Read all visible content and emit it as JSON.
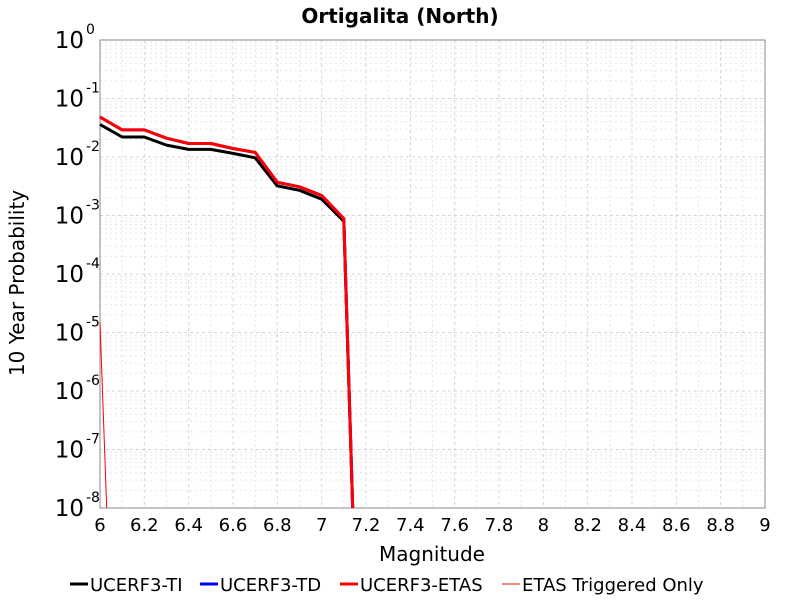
{
  "chart_data": {
    "type": "line",
    "title": "Ortigalita (North)",
    "xlabel": "Magnitude",
    "ylabel": "10 Year Probability",
    "xlim": [
      6,
      9
    ],
    "ylim": [
      1e-08,
      1
    ],
    "yscale": "log",
    "grid": true,
    "legend_position": "bottom",
    "x_ticks": [
      "6",
      "6.2",
      "6.4",
      "6.6",
      "6.8",
      "7",
      "7.2",
      "7.4",
      "7.6",
      "7.8",
      "8",
      "8.2",
      "8.4",
      "8.6",
      "8.8",
      "9"
    ],
    "y_ticks": [
      {
        "base": "10",
        "exp": "0"
      },
      {
        "base": "10",
        "exp": "-1"
      },
      {
        "base": "10",
        "exp": "-2"
      },
      {
        "base": "10",
        "exp": "-3"
      },
      {
        "base": "10",
        "exp": "-4"
      },
      {
        "base": "10",
        "exp": "-5"
      },
      {
        "base": "10",
        "exp": "-6"
      },
      {
        "base": "10",
        "exp": "-7"
      },
      {
        "base": "10",
        "exp": "-8"
      }
    ],
    "series": [
      {
        "name": "UCERF3-TI",
        "color": "#000000",
        "width": 3,
        "x": [
          6.0,
          6.1,
          6.2,
          6.3,
          6.4,
          6.5,
          6.6,
          6.7,
          6.8,
          6.9,
          7.0,
          7.1,
          7.14
        ],
        "y": [
          0.036,
          0.022,
          0.022,
          0.016,
          0.0135,
          0.0135,
          0.0115,
          0.0097,
          0.0032,
          0.0027,
          0.0019,
          0.0008,
          1e-08
        ]
      },
      {
        "name": "UCERF3-TD",
        "color": "#0000ff",
        "width": 3,
        "x": [
          6.0,
          6.1,
          6.2,
          6.3,
          6.4,
          6.5,
          6.6,
          6.7,
          6.8,
          6.9,
          7.0,
          7.1,
          7.14
        ],
        "y": [
          0.048,
          0.029,
          0.029,
          0.021,
          0.017,
          0.017,
          0.014,
          0.012,
          0.0037,
          0.0031,
          0.0022,
          0.00088,
          1e-08
        ]
      },
      {
        "name": "UCERF3-ETAS",
        "color": "#ff0000",
        "width": 3,
        "x": [
          6.0,
          6.1,
          6.2,
          6.3,
          6.4,
          6.5,
          6.6,
          6.7,
          6.8,
          6.9,
          7.0,
          7.1,
          7.14
        ],
        "y": [
          0.048,
          0.029,
          0.029,
          0.021,
          0.017,
          0.017,
          0.014,
          0.012,
          0.0037,
          0.0031,
          0.0022,
          0.00088,
          1e-08
        ]
      },
      {
        "name": "ETAS Triggered Only",
        "color": "#ff0000",
        "width": 1,
        "x": [
          6.0,
          6.03
        ],
        "y": [
          1.5e-05,
          1e-08
        ]
      }
    ]
  }
}
